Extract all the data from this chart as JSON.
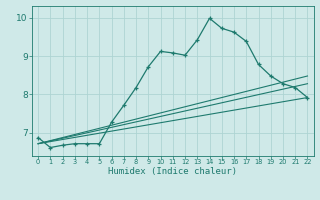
{
  "xlabel": "Humidex (Indice chaleur)",
  "bg_color": "#cfe9e8",
  "grid_color": "#aed4d3",
  "line_color": "#1e7a6e",
  "xlim": [
    -0.5,
    22.5
  ],
  "ylim": [
    6.4,
    10.3
  ],
  "xticks": [
    0,
    1,
    2,
    3,
    4,
    5,
    6,
    7,
    8,
    9,
    10,
    11,
    12,
    13,
    14,
    15,
    16,
    17,
    18,
    19,
    20,
    21,
    22
  ],
  "yticks": [
    7,
    8,
    9,
    10
  ],
  "main_line": {
    "x": [
      0,
      1,
      2,
      3,
      4,
      5,
      6,
      7,
      8,
      9,
      10,
      11,
      12,
      13,
      14,
      15,
      16,
      17,
      18,
      19,
      20,
      21,
      22
    ],
    "y": [
      6.88,
      6.62,
      6.68,
      6.72,
      6.72,
      6.72,
      7.28,
      7.72,
      8.18,
      8.72,
      9.12,
      9.08,
      9.02,
      9.42,
      9.98,
      9.72,
      9.62,
      9.38,
      8.78,
      8.48,
      8.28,
      8.18,
      7.92
    ]
  },
  "line2": {
    "x": [
      0,
      22
    ],
    "y": [
      6.72,
      8.48
    ]
  },
  "line3": {
    "x": [
      0,
      22
    ],
    "y": [
      6.72,
      8.28
    ]
  },
  "line4": {
    "x": [
      0,
      22
    ],
    "y": [
      6.72,
      7.92
    ]
  }
}
